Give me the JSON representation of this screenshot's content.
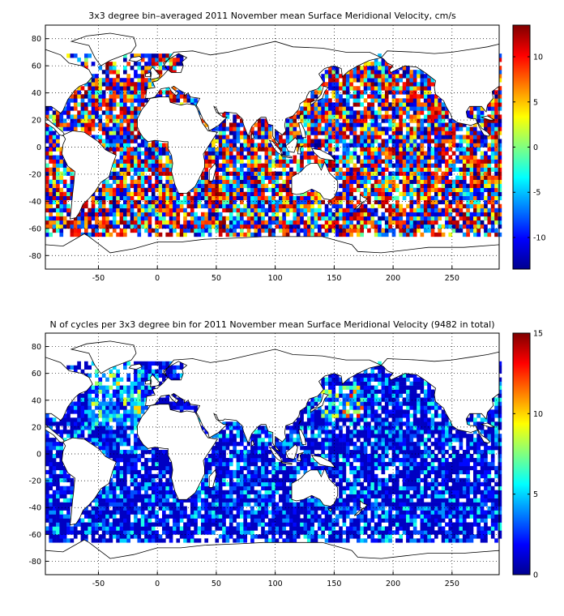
{
  "chart_data": [
    {
      "type": "heatmap",
      "title": "3x3 degree bin–averaged 2011 November mean Surface Meridional Velocity, cm/s",
      "xlabel": "",
      "ylabel": "",
      "xlim": [
        -95,
        290
      ],
      "ylim": [
        -90,
        90
      ],
      "x_ticks": [
        -50,
        0,
        50,
        100,
        150,
        200,
        250
      ],
      "y_ticks": [
        80,
        60,
        40,
        20,
        0,
        -20,
        -40,
        -60,
        -80
      ],
      "grid": true,
      "bin_size_deg": 3,
      "colorbar": {
        "min": -13.5,
        "max": 13.5,
        "ticks": [
          10,
          5,
          0,
          -5,
          -10
        ],
        "colormap": "jet"
      },
      "values": "bin-averaged meridional velocity per 3x3 degree ocean bin (individual bin values not labeled)"
    },
    {
      "type": "heatmap",
      "title": "N of cycles per 3x3 degree bin for 2011 November mean Surface Meridional Velocity (9482 in total)",
      "xlabel": "",
      "ylabel": "",
      "xlim": [
        -95,
        290
      ],
      "ylim": [
        -90,
        90
      ],
      "x_ticks": [
        -50,
        0,
        50,
        100,
        150,
        200,
        250
      ],
      "y_ticks": [
        80,
        60,
        40,
        20,
        0,
        -20,
        -40,
        -60,
        -80
      ],
      "grid": true,
      "bin_size_deg": 3,
      "total": 9482,
      "colorbar": {
        "min": 0,
        "max": 15,
        "ticks": [
          15,
          10,
          5,
          0
        ],
        "colormap": "jet"
      },
      "values": "number of cycles per 3x3 degree ocean bin (individual bin values not labeled)"
    }
  ]
}
